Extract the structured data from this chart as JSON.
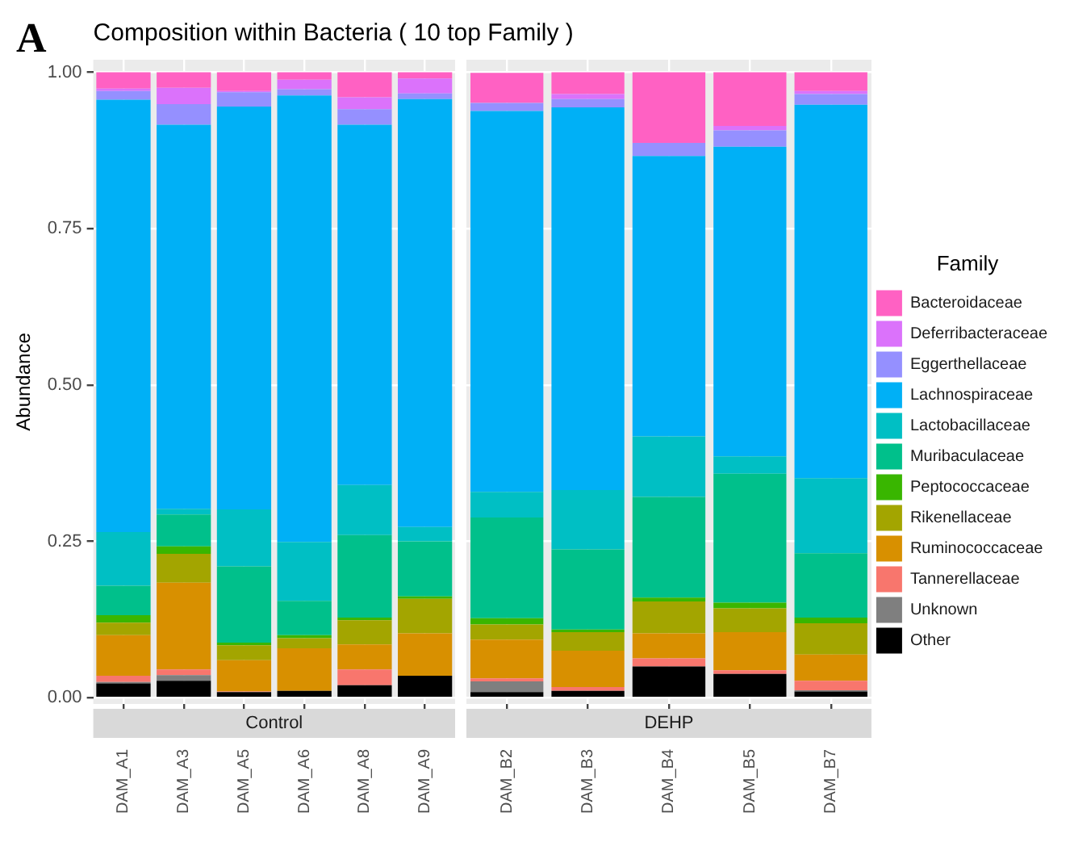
{
  "chart_data": [
    {
      "type": "bar",
      "stacked": true,
      "title": "Composition within Bacteria ( 10 top Family )",
      "subtitle": "Control",
      "ylabel": "Abundance",
      "annotations": [
        "A"
      ],
      "categories": [
        "DAM_A1",
        "DAM_A3",
        "DAM_A5",
        "DAM_A6",
        "DAM_A8",
        "DAM_A9"
      ],
      "ylim": [
        -0.01,
        1.02
      ],
      "yticks": [
        {
          "value": 0,
          "label": "0.00"
        },
        {
          "value": 0.25,
          "label": "0.25"
        },
        {
          "value": 0.5,
          "label": "0.50"
        },
        {
          "value": 0.75,
          "label": "0.75"
        },
        {
          "value": 1,
          "label": "1.00"
        }
      ],
      "grid": true,
      "legend": false,
      "series": [
        {
          "color": "#000000",
          "values": [
            0.023,
            0.027,
            0.009,
            0.011,
            0.02,
            0.035
          ]
        },
        {
          "color": "#7f7f7f",
          "values": [
            0.002,
            0.009,
            0,
            0,
            0,
            0
          ]
        },
        {
          "color": "#f8766d",
          "values": [
            0.01,
            0.009,
            0.001,
            0,
            0.025,
            0
          ]
        },
        {
          "color": "#d89000",
          "values": [
            0.065,
            0.139,
            0.05,
            0.068,
            0.04,
            0.068
          ]
        },
        {
          "color": "#a3a500",
          "values": [
            0.02,
            0.046,
            0.024,
            0.016,
            0.039,
            0.055
          ]
        },
        {
          "color": "#39b600",
          "values": [
            0.012,
            0.012,
            0.004,
            0.005,
            0.004,
            0.004
          ]
        },
        {
          "color": "#00c08b",
          "values": [
            0.047,
            0.051,
            0.122,
            0.055,
            0.132,
            0.088
          ]
        },
        {
          "color": "#00bfc4",
          "values": [
            0.086,
            0.009,
            0.091,
            0.094,
            0.08,
            0.023
          ]
        },
        {
          "color": "#00b0f6",
          "values": [
            0.691,
            0.614,
            0.644,
            0.714,
            0.576,
            0.684
          ]
        },
        {
          "color": "#9590ff",
          "values": [
            0.014,
            0.033,
            0.023,
            0.01,
            0.025,
            0.009
          ]
        },
        {
          "color": "#db72fb",
          "values": [
            0.004,
            0.026,
            0.002,
            0.015,
            0.019,
            0.024
          ]
        },
        {
          "color": "#ff61c3",
          "values": [
            0.026,
            0.025,
            0.03,
            0.012,
            0.04,
            0.01
          ]
        }
      ]
    },
    {
      "type": "bar",
      "stacked": true,
      "subtitle": "DEHP",
      "legend_title": "Family",
      "categories": [
        "DAM_B2",
        "DAM_B3",
        "DAM_B4",
        "DAM_B5",
        "DAM_B7"
      ],
      "ylim": [
        -0.01,
        1.02
      ],
      "yticks": [
        0,
        0.25,
        0.5,
        0.75,
        1
      ],
      "tick_labels": "x",
      "grid": true,
      "legend": "right",
      "series": [
        {
          "name": "Other",
          "color": "#000000",
          "values": [
            0.009,
            0.011,
            0.05,
            0.038,
            0.01
          ]
        },
        {
          "name": "Unknown",
          "color": "#7f7f7f",
          "values": [
            0.017,
            0,
            0,
            0,
            0.002
          ]
        },
        {
          "name": "Tannerellaceae",
          "color": "#f8766d",
          "values": [
            0.005,
            0.006,
            0.013,
            0.006,
            0.015
          ]
        },
        {
          "name": "Ruminococcaceae",
          "color": "#d89000",
          "values": [
            0.062,
            0.058,
            0.04,
            0.061,
            0.042
          ]
        },
        {
          "name": "Rikenellaceae",
          "color": "#a3a500",
          "values": [
            0.024,
            0.03,
            0.051,
            0.038,
            0.05
          ]
        },
        {
          "name": "Peptococcaceae",
          "color": "#39b600",
          "values": [
            0.01,
            0.004,
            0.006,
            0.009,
            0.009
          ]
        },
        {
          "name": "Muribaculaceae",
          "color": "#00c08b",
          "values": [
            0.161,
            0.128,
            0.161,
            0.206,
            0.103
          ]
        },
        {
          "name": "Lactobacillaceae",
          "color": "#00bfc4",
          "values": [
            0.041,
            0.095,
            0.097,
            0.028,
            0.12
          ]
        },
        {
          "name": "Lachnospiraceae",
          "color": "#00b0f6",
          "values": [
            0.609,
            0.612,
            0.448,
            0.495,
            0.597
          ]
        },
        {
          "name": "Eggerthellaceae",
          "color": "#9590ff",
          "values": [
            0.013,
            0.013,
            0.021,
            0.026,
            0.017
          ]
        },
        {
          "name": "Deferribacteraceae",
          "color": "#db72fb",
          "values": [
            null,
            0.008,
            0,
            0.007,
            0.005
          ]
        },
        {
          "name": "Bacteroidaceae",
          "color": "#ff61c3",
          "values": [
            0.048,
            0.035,
            0.113,
            0.086,
            0.03
          ]
        }
      ]
    }
  ]
}
